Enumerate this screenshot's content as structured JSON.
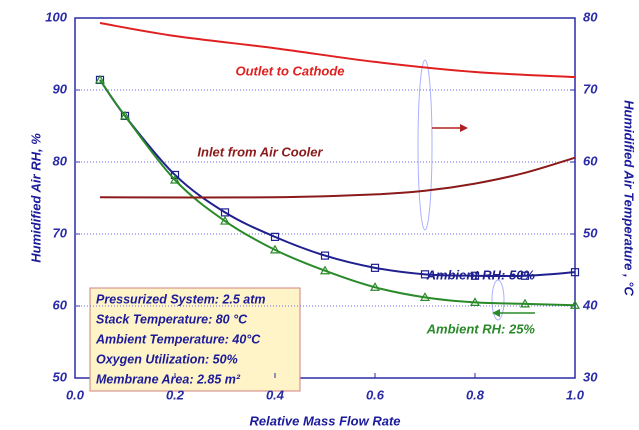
{
  "chart_data": {
    "type": "line",
    "xlabel": "Relative Mass Flow Rate",
    "ylabel": "Humidified Air RH, %",
    "y2label": "Humidified Air Temperature , °C",
    "xlim": [
      0,
      1
    ],
    "xticks": [
      {
        "value": 0,
        "label": "0.0"
      },
      0.2,
      0.4,
      0.6,
      0.8,
      {
        "value": 1,
        "label": "1.0"
      }
    ],
    "ylim": [
      50,
      100
    ],
    "yticks": [
      50,
      60,
      70,
      80,
      90,
      100
    ],
    "y2lim": [
      30,
      80
    ],
    "y2ticks": [
      30,
      40,
      50,
      60,
      70,
      80
    ],
    "grid": true,
    "series": [
      {
        "name": "Ambient RH: 50%",
        "color": "#1f1f8f",
        "marker": "square",
        "x": [
          0.05,
          0.1,
          0.2,
          0.3,
          0.4,
          0.5,
          0.6,
          0.7,
          0.8,
          0.9,
          1.0
        ],
        "values": [
          91.4,
          86.4,
          78.2,
          73,
          69.6,
          67,
          65.3,
          64.4,
          64.2,
          64.2,
          64.7
        ]
      },
      {
        "name": "Ambient RH: 25%",
        "color": "#2a8a2a",
        "marker": "triangle",
        "x": [
          0.05,
          0.1,
          0.2,
          0.3,
          0.4,
          0.5,
          0.6,
          0.7,
          0.8,
          0.9,
          1.0
        ],
        "values": [
          91.4,
          86.4,
          77.5,
          71.8,
          67.8,
          64.9,
          62.6,
          61.2,
          60.5,
          60.3,
          60.1
        ]
      },
      {
        "name": "Outlet to Cathode",
        "color": "#e02020",
        "axis": "y2",
        "x": [
          0.05,
          0.2,
          0.4,
          0.6,
          0.8,
          1.0
        ],
        "values": [
          79.3,
          77.5,
          75.8,
          73.9,
          72.5,
          71.8
        ]
      },
      {
        "name": "Inlet from Air Cooler",
        "color": "#8b1a1a",
        "axis": "y2",
        "x": [
          0.05,
          0.4,
          0.6,
          0.7,
          0.8,
          0.9,
          1.0
        ],
        "values": [
          55.1,
          55.1,
          55.5,
          56,
          57,
          58.5,
          60.6
        ]
      }
    ],
    "annotations": [
      "Pressurized System: 2.5 atm",
      "Stack Temperature: 80 °C",
      "Ambient Temperature: 40°C",
      "Oxygen Utilization: 50%",
      "Membrane Area: 2.85 m²"
    ]
  }
}
